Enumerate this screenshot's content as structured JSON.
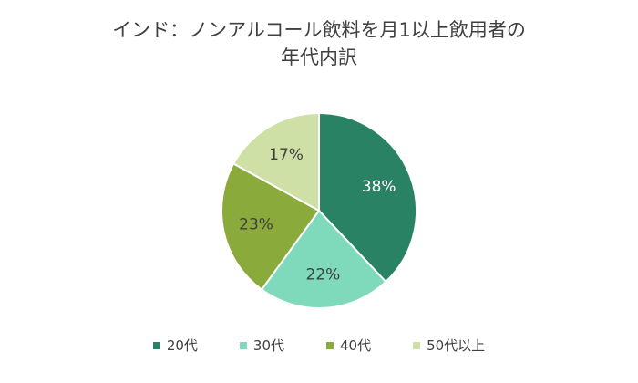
{
  "chart_data": {
    "type": "pie",
    "title_lines": [
      "インド：ノンアルコール飲料を月1以上飲用者の",
      "年代内訳"
    ],
    "categories": [
      "20代",
      "30代",
      "40代",
      "50代以上"
    ],
    "values": [
      38,
      22,
      23,
      17
    ],
    "data_labels": [
      "38%",
      "22%",
      "23%",
      "17%"
    ],
    "colors": [
      "#2a8264",
      "#7fd9bb",
      "#8aaa3c",
      "#cfe0a6"
    ],
    "label_colors": [
      "#ffffff",
      "#404040",
      "#404040",
      "#404040"
    ],
    "legend_position": "bottom",
    "start": "top",
    "direction": "clockwise"
  }
}
